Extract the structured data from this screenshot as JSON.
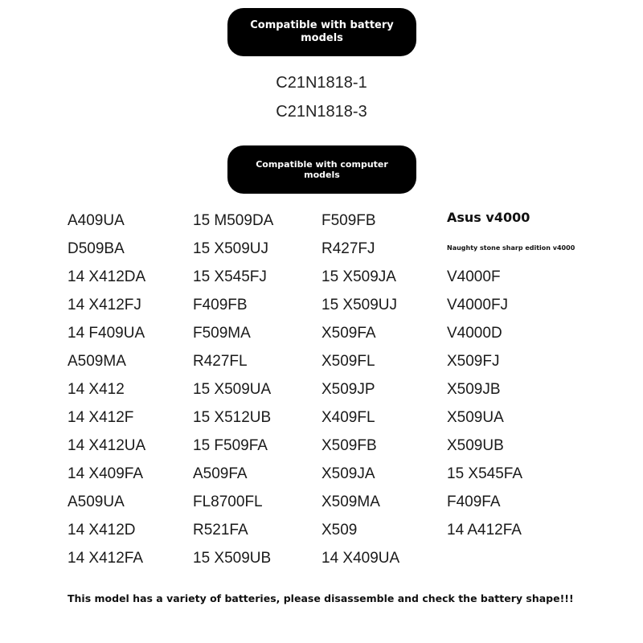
{
  "header_battery": "Compatible with battery models",
  "battery_models": [
    "C21N1818-1",
    "C21N1818-3"
  ],
  "header_computer": "Compatible with computer models",
  "columns": [
    [
      "A409UA",
      "D509BA",
      "14 X412DA",
      "14 X412FJ",
      "14 F409UA",
      "A509MA",
      "14 X412",
      "14 X412F",
      "14 X412UA",
      "14 X409FA",
      "A509UA",
      "14 X412D",
      "14 X412FA"
    ],
    [
      "15 M509DA",
      "15 X509UJ",
      "15 X545FJ",
      "F409FB",
      "F509MA",
      "R427FL",
      "15 X509UA",
      "15 X512UB",
      "15 F509FA",
      "A509FA",
      "FL8700FL",
      "R521FA",
      "15 X509UB"
    ],
    [
      "F509FB",
      "R427FJ",
      "15 X509JA",
      "15 X509UJ",
      "X509FA",
      "X509FL",
      "X509JP",
      "X409FL",
      "X509FB",
      "X509JA",
      "X509MA",
      "X509",
      "14 X409UA"
    ]
  ],
  "asus": {
    "title": "Asus v4000",
    "subtitle": "Naughty stone sharp edition v4000",
    "models": [
      "V4000F",
      "V4000FJ",
      "V4000D",
      "X509FJ",
      "X509JB",
      "X509UA",
      "X509UB",
      "15 X545FA",
      "F409FA",
      "14 A412FA"
    ]
  },
  "note": "This model has a variety of batteries, please disassemble and check the battery shape!!!"
}
